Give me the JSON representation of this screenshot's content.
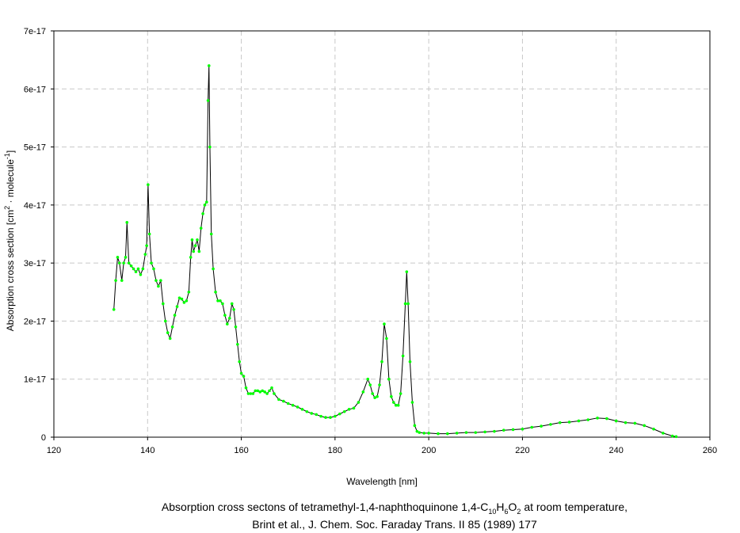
{
  "chart_data": {
    "type": "line",
    "title": [
      "Absorption cross sectons of tetramethyl-1,4-naphthoquinone 1,4-C",
      "10",
      "H",
      "6",
      "O",
      "2",
      " at room temperature,"
    ],
    "subtitle": "Brint et al., J. Chem. Soc. Faraday Trans. II 85 (1989) 177",
    "x_label": "Wavelength [nm]",
    "y_label": [
      "Absorption cross section [cm",
      "2",
      " · molecule",
      "-1",
      "]"
    ],
    "line_color": "#000000",
    "marker_color": "#00ff00",
    "grid": true,
    "xlim": [
      120,
      260
    ],
    "xticks": [
      120,
      140,
      160,
      180,
      200,
      220,
      240,
      260
    ],
    "ylim": [
      0,
      7e-17
    ],
    "yticks": [
      0,
      1e-17,
      2e-17,
      3e-17,
      4e-17,
      5e-17,
      6e-17,
      7e-17
    ],
    "x": [
      132.8,
      133.2,
      133.6,
      134.0,
      134.5,
      134.9,
      135.3,
      135.6,
      136.0,
      136.5,
      137.0,
      137.5,
      138.0,
      138.5,
      139.0,
      139.5,
      139.8,
      140.1,
      140.4,
      140.8,
      141.3,
      141.8,
      142.3,
      142.8,
      143.3,
      143.8,
      144.3,
      144.8,
      145.3,
      145.8,
      146.3,
      146.8,
      147.3,
      147.8,
      148.3,
      148.8,
      149.2,
      149.5,
      149.8,
      150.2,
      150.6,
      151.0,
      151.4,
      151.8,
      152.2,
      152.6,
      152.9,
      153.1,
      153.3,
      153.6,
      154.0,
      154.5,
      155.0,
      155.5,
      156.0,
      156.5,
      157.0,
      157.5,
      158.0,
      158.4,
      158.8,
      159.2,
      159.6,
      160.0,
      160.5,
      161.0,
      161.5,
      162.0,
      162.5,
      163.0,
      163.5,
      164.0,
      164.5,
      165.0,
      165.5,
      166.0,
      166.5,
      167.0,
      168,
      169,
      170,
      171,
      172,
      173,
      174,
      175,
      176,
      177,
      178,
      179,
      180,
      181,
      182,
      183,
      184,
      185,
      186,
      187,
      187.5,
      188,
      188.5,
      189,
      189.5,
      190,
      190.5,
      191,
      191.5,
      192,
      192.5,
      193,
      193.5,
      194,
      194.5,
      195,
      195.3,
      195.6,
      196,
      196.5,
      197,
      197.5,
      198,
      199,
      200,
      202,
      204,
      206,
      208,
      210,
      212,
      214,
      216,
      218,
      220,
      222,
      224,
      226,
      228,
      230,
      232,
      234,
      236,
      238,
      240,
      242,
      244,
      246,
      248,
      250,
      252,
      252.8
    ],
    "values": [
      2.2e-17,
      2.7e-17,
      3.1e-17,
      3e-17,
      2.7e-17,
      3e-17,
      3.1e-17,
      3.7e-17,
      3e-17,
      2.95e-17,
      2.9e-17,
      2.85e-17,
      2.9e-17,
      2.8e-17,
      2.9e-17,
      3.15e-17,
      3.3e-17,
      4.35e-17,
      3.5e-17,
      3e-17,
      2.9e-17,
      2.7e-17,
      2.6e-17,
      2.7e-17,
      2.3e-17,
      2e-17,
      1.8e-17,
      1.7e-17,
      1.9e-17,
      2.1e-17,
      2.25e-17,
      2.4e-17,
      2.38e-17,
      2.32e-17,
      2.35e-17,
      2.5e-17,
      3.1e-17,
      3.4e-17,
      3.2e-17,
      3.3e-17,
      3.4e-17,
      3.2e-17,
      3.6e-17,
      3.85e-17,
      4e-17,
      4.05e-17,
      5.8e-17,
      6.4e-17,
      5e-17,
      3.5e-17,
      2.9e-17,
      2.5e-17,
      2.35e-17,
      2.35e-17,
      2.3e-17,
      2.1e-17,
      1.95e-17,
      2.05e-17,
      2.3e-17,
      2.2e-17,
      1.9e-17,
      1.6e-17,
      1.3e-17,
      1.1e-17,
      1.05e-17,
      8.5e-18,
      7.5e-18,
      7.5e-18,
      7.5e-18,
      8e-18,
      8e-18,
      7.8e-18,
      8e-18,
      7.8e-18,
      7.5e-18,
      8e-18,
      8.5e-18,
      7.5e-18,
      6.5e-18,
      6.2e-18,
      5.8e-18,
      5.5e-18,
      5.2e-18,
      4.8e-18,
      4.4e-18,
      4.1e-18,
      3.9e-18,
      3.6e-18,
      3.4e-18,
      3.4e-18,
      3.6e-18,
      4e-18,
      4.4e-18,
      4.8e-18,
      5e-18,
      6e-18,
      7.8e-18,
      1e-17,
      9e-18,
      7.5e-18,
      6.8e-18,
      7e-18,
      9e-18,
      1.3e-17,
      1.95e-17,
      1.7e-17,
      1e-17,
      7e-18,
      6e-18,
      5.5e-18,
      5.5e-18,
      7.5e-18,
      1.4e-17,
      2.3e-17,
      2.85e-17,
      2.3e-17,
      1.3e-17,
      6e-18,
      2e-18,
      1e-18,
      8e-19,
      7e-19,
      7e-19,
      6e-19,
      6e-19,
      7e-19,
      8e-19,
      8e-19,
      9e-19,
      1e-18,
      1.2e-18,
      1.3e-18,
      1.4e-18,
      1.7e-18,
      1.9e-18,
      2.2e-18,
      2.5e-18,
      2.6e-18,
      2.8e-18,
      3e-18,
      3.3e-18,
      3.2e-18,
      2.8e-18,
      2.5e-18,
      2.4e-18,
      2e-18,
      1.4e-18,
      7e-19,
      2e-19,
      1e-19
    ]
  }
}
